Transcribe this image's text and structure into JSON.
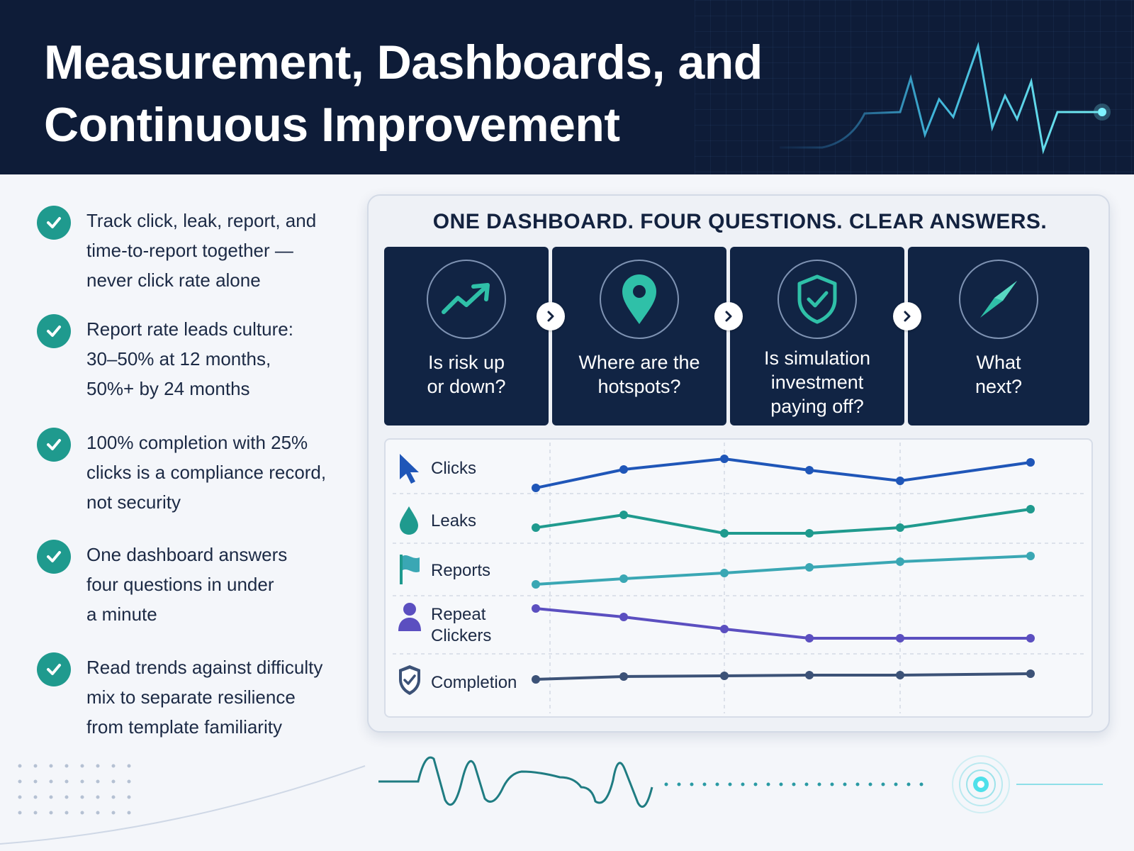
{
  "header": {
    "title_line1": "Measurement, Dashboards, and",
    "title_line2": "Continuous Improvement"
  },
  "bullets": [
    {
      "text": "Track click, leak, report, and\ntime-to-report together —\nnever click rate alone"
    },
    {
      "text": "Report rate leads culture:\n30–50% at 12 months,\n50%+ by 24 months"
    },
    {
      "text": "100% completion with 25%\nclicks is a compliance record,\nnot security"
    },
    {
      "text": "One dashboard answers\nfour questions in under\na minute"
    },
    {
      "text": "Read trends against difficulty\nmix to separate resilience\nfrom template familiarity"
    }
  ],
  "dashboard": {
    "title": "ONE DASHBOARD. FOUR QUESTIONS. CLEAR ANSWERS.",
    "questions": [
      {
        "icon": "trend-up-icon",
        "text": "Is risk up\nor down?"
      },
      {
        "icon": "location-pin-icon",
        "text": "Where are the\nhotspots?"
      },
      {
        "icon": "shield-check-icon",
        "text": "Is simulation\ninvestment\npaying off?"
      },
      {
        "icon": "compass-icon",
        "text": "What\nnext?"
      }
    ],
    "metrics": [
      {
        "label": "Clicks",
        "icon": "cursor-icon",
        "color": "#1f56b8"
      },
      {
        "label": "Leaks",
        "icon": "droplet-icon",
        "color": "#1f9a8e"
      },
      {
        "label": "Reports",
        "icon": "flag-icon",
        "color": "#3aa7b4"
      },
      {
        "label": "Repeat\nClickers",
        "icon": "person-icon",
        "color": "#5b4fc0"
      },
      {
        "label": "Completion",
        "icon": "shield-check-icon",
        "color": "#3c5277"
      }
    ]
  },
  "colors": {
    "header_bg": "#0e1c38",
    "accent_teal": "#1f9a8e",
    "panel_bg": "#112444"
  }
}
